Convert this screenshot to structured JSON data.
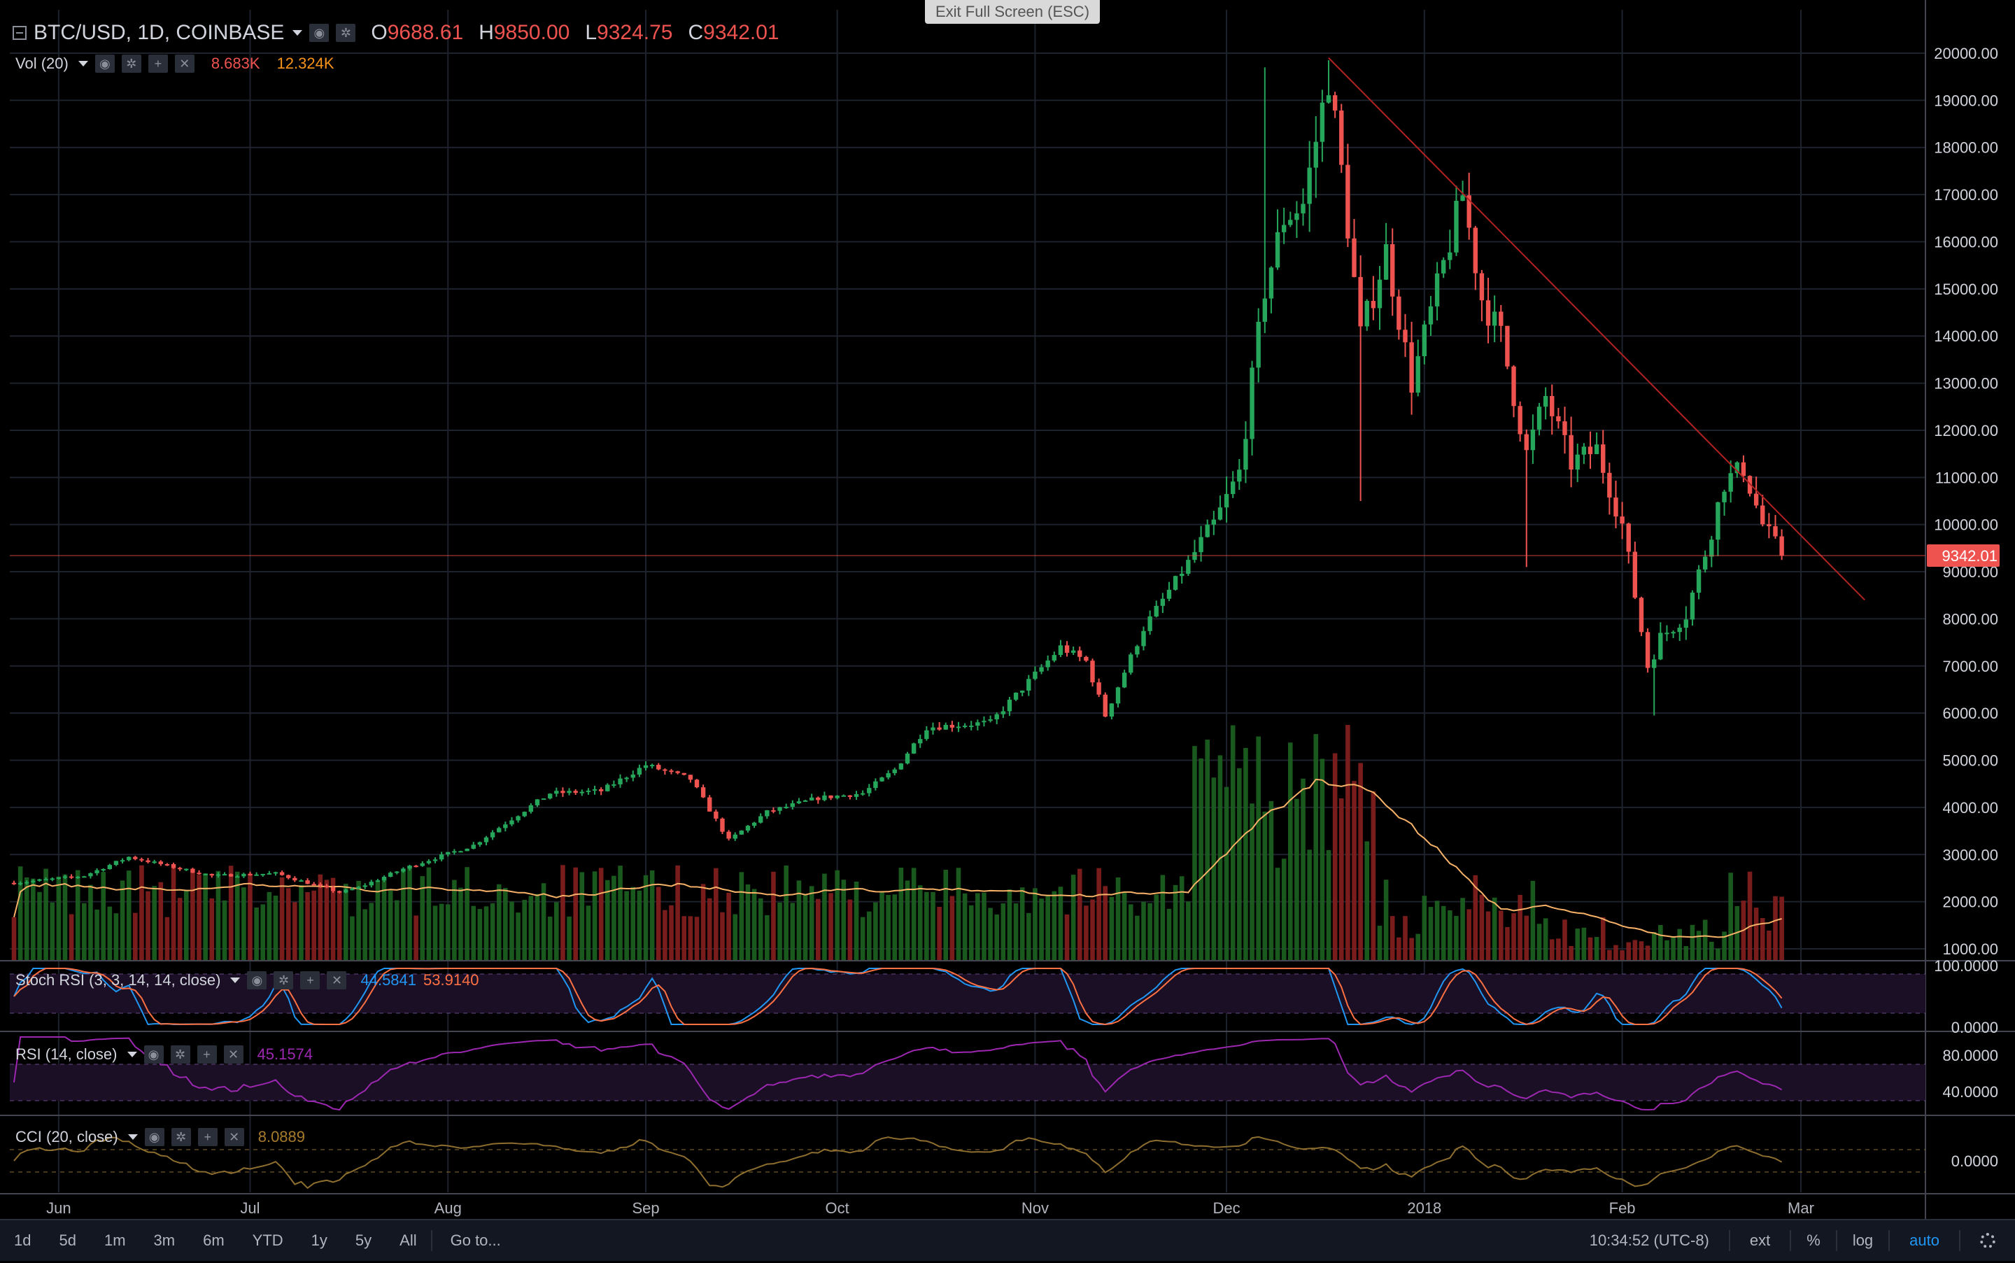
{
  "header": {
    "symbol": "BTC/USD, 1D, COINBASE",
    "ohlc": [
      {
        "key": "O",
        "value": "9688.61"
      },
      {
        "key": "H",
        "value": "9850.00"
      },
      {
        "key": "L",
        "value": "9324.75"
      },
      {
        "key": "C",
        "value": "9342.01"
      }
    ]
  },
  "exit_fullscreen": "Exit Full Screen (ESC)",
  "volume_legend": {
    "label": "Vol (20)",
    "value": "8.683K",
    "ma_value": "12.324K"
  },
  "indicators": {
    "stoch_rsi": {
      "label": "Stoch RSI (3, 3, 14, 14, close)",
      "k": "44.5841",
      "d": "53.9140",
      "axis": [
        "100.0000",
        "0.0000"
      ]
    },
    "rsi": {
      "label": "RSI (14, close)",
      "value": "45.1574",
      "axis": [
        "80.0000",
        "40.0000"
      ]
    },
    "cci": {
      "label": "CCI (20, close)",
      "value": "8.0889",
      "axis": [
        "0.0000"
      ]
    }
  },
  "toolbar": {
    "ranges": [
      "1d",
      "5d",
      "1m",
      "3m",
      "6m",
      "YTD",
      "1y",
      "5y",
      "All"
    ],
    "goto": "Go to...",
    "time": "10:34:52 (UTC-8)",
    "ext": "ext",
    "percent": "%",
    "log": "log",
    "auto": "auto"
  },
  "colors": {
    "background": "#000000",
    "up": "#26a65b",
    "down": "#ef5350",
    "grid": "#1e222d",
    "trendline": "#b22222",
    "vol_ma": "#f7b267",
    "stoch_k": "#2196f3",
    "stoch_d": "#ff7043",
    "rsi": "#9c27b0",
    "cci": "#8d6e2f",
    "indicator_band": "#1a0f24"
  },
  "chart_data": {
    "type": "candlestick",
    "x_axis_labels": [
      "Jun",
      "Jul",
      "Aug",
      "Sep",
      "Oct",
      "Nov",
      "Dec",
      "2018",
      "Feb",
      "Mar"
    ],
    "y_axis": {
      "min": 1000,
      "max": 20000,
      "ticks": [
        "20000.00",
        "19000.00",
        "18000.00",
        "17000.00",
        "16000.00",
        "15000.00",
        "14000.00",
        "13000.00",
        "12000.00",
        "11000.00",
        "10000.00",
        "9000.00",
        "8000.00",
        "7000.00",
        "6000.00",
        "5000.00",
        "4000.00",
        "3000.00",
        "2000.00",
        "1000.00"
      ]
    },
    "last_price_label": "9342.01",
    "last_price": 9342.01,
    "close_anchors": [
      [
        "2017-05-25",
        2400
      ],
      [
        "2017-06-05",
        2550
      ],
      [
        "2017-06-12",
        2950
      ],
      [
        "2017-06-25",
        2550
      ],
      [
        "2017-07-05",
        2600
      ],
      [
        "2017-07-15",
        2200
      ],
      [
        "2017-07-18",
        2300
      ],
      [
        "2017-07-25",
        2700
      ],
      [
        "2017-08-05",
        3200
      ],
      [
        "2017-08-12",
        3850
      ],
      [
        "2017-08-17",
        4300
      ],
      [
        "2017-08-25",
        4350
      ],
      [
        "2017-09-01",
        4900
      ],
      [
        "2017-09-08",
        4600
      ],
      [
        "2017-09-14",
        3300
      ],
      [
        "2017-09-20",
        3900
      ],
      [
        "2017-09-28",
        4200
      ],
      [
        "2017-10-05",
        4300
      ],
      [
        "2017-10-10",
        4800
      ],
      [
        "2017-10-15",
        5700
      ],
      [
        "2017-10-25",
        5800
      ],
      [
        "2017-11-05",
        7400
      ],
      [
        "2017-11-09",
        7100
      ],
      [
        "2017-11-12",
        5950
      ],
      [
        "2017-11-18",
        7800
      ],
      [
        "2017-11-26",
        9400
      ],
      [
        "2017-11-29",
        10000
      ],
      [
        "2017-12-03",
        11100
      ],
      [
        "2017-12-07",
        15000
      ],
      [
        "2017-12-10",
        16500
      ],
      [
        "2017-12-13",
        16800
      ],
      [
        "2017-12-17",
        19500
      ],
      [
        "2017-12-19",
        17500
      ],
      [
        "2017-12-22",
        14000
      ],
      [
        "2017-12-26",
        15800
      ],
      [
        "2017-12-30",
        13000
      ],
      [
        "2018-01-03",
        15000
      ],
      [
        "2018-01-07",
        17000
      ],
      [
        "2018-01-10",
        14800
      ],
      [
        "2018-01-13",
        14000
      ],
      [
        "2018-01-17",
        11500
      ],
      [
        "2018-01-20",
        12700
      ],
      [
        "2018-01-24",
        11300
      ],
      [
        "2018-01-28",
        11600
      ],
      [
        "2018-02-01",
        10000
      ],
      [
        "2018-02-05",
        7000
      ],
      [
        "2018-02-07",
        7600
      ],
      [
        "2018-02-11",
        8100
      ],
      [
        "2018-02-14",
        9400
      ],
      [
        "2018-02-17",
        10900
      ],
      [
        "2018-02-20",
        11200
      ],
      [
        "2018-02-23",
        10000
      ],
      [
        "2018-02-26",
        9342
      ]
    ],
    "trendline": [
      [
        "2017-12-17",
        19900
      ],
      [
        "2018-03-11",
        8400
      ]
    ],
    "volume_max": 5000,
    "date_range": [
      "2017-05-25",
      "2018-02-26"
    ],
    "grid": true
  }
}
